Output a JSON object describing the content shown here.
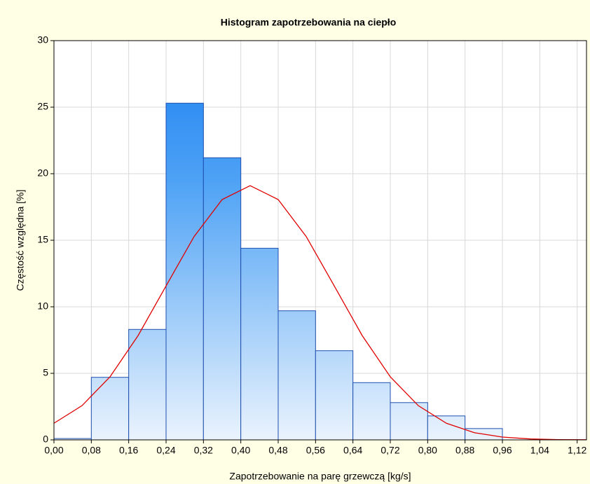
{
  "chart_data": {
    "type": "histogram",
    "title": "Histogram zapotrzebowania na ciepło",
    "xlabel": "Zapotrzebowanie na parę grzewczą [kg/s]",
    "ylabel": "Częstość względna [%]",
    "bins": [
      0,
      0.08,
      0.16,
      0.24,
      0.32,
      0.4,
      0.48,
      0.56,
      0.64,
      0.72,
      0.8,
      0.88,
      0.96
    ],
    "values": [
      0.1,
      4.7,
      8.3,
      25.3,
      21.2,
      14.4,
      9.7,
      6.7,
      4.3,
      2.8,
      1.8,
      0.85
    ],
    "color": "#2a88f0",
    "curve": {
      "color": "#e00000",
      "x": [
        0,
        0.06,
        0.12,
        0.18,
        0.24,
        0.3,
        0.36,
        0.42,
        0.48,
        0.54,
        0.6,
        0.66,
        0.72,
        0.78,
        0.84,
        0.9,
        0.96,
        1.02,
        1.08,
        1.14
      ],
      "values": [
        1.25,
        2.57,
        4.74,
        7.83,
        11.57,
        15.28,
        18.06,
        19.1,
        18.06,
        15.28,
        11.57,
        7.83,
        4.74,
        2.57,
        1.25,
        0.54,
        0.21,
        0.07,
        0.02,
        0.01
      ]
    },
    "xlim": [
      0,
      1.14
    ],
    "xticks": [
      {
        "value": 0,
        "label": "0,00"
      },
      {
        "value": 0.08,
        "label": "0,08"
      },
      {
        "value": 0.16,
        "label": "0,16"
      },
      {
        "value": 0.24,
        "label": "0,24"
      },
      {
        "value": 0.32,
        "label": "0,32"
      },
      {
        "value": 0.4,
        "label": "0,40"
      },
      {
        "value": 0.48,
        "label": "0,48"
      },
      {
        "value": 0.56,
        "label": "0,56"
      },
      {
        "value": 0.64,
        "label": "0,64"
      },
      {
        "value": 0.72,
        "label": "0,72"
      },
      {
        "value": 0.8,
        "label": "0,80"
      },
      {
        "value": 0.88,
        "label": "0,88"
      },
      {
        "value": 0.96,
        "label": "0,96"
      },
      {
        "value": 1.04,
        "label": "1,04"
      },
      {
        "value": 1.12,
        "label": "1,12"
      }
    ],
    "ylim": [
      0,
      30
    ],
    "yticks": [
      0,
      5,
      10,
      15,
      20,
      25,
      30
    ],
    "grid": true
  }
}
